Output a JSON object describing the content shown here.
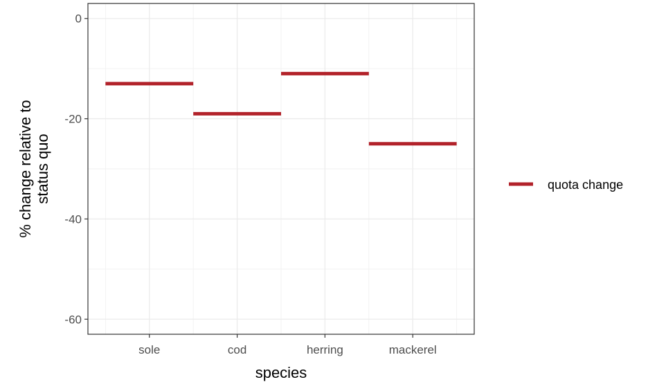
{
  "chart_data": {
    "type": "line",
    "title": "",
    "xlabel": "species",
    "ylabel_lines": [
      "% change relative to",
      "status quo"
    ],
    "categories": [
      "sole",
      "cod",
      "herring",
      "mackerel"
    ],
    "series": [
      {
        "name": "quota change",
        "values": [
          -13,
          -19,
          -11,
          -25
        ],
        "color": "#b2222a"
      }
    ],
    "ylim": [
      -63,
      3
    ],
    "yticks": [
      0,
      -20,
      -40,
      -60
    ],
    "ytick_labels": [
      "0",
      "-20",
      "-40",
      "-60"
    ],
    "grid": true,
    "legend": {
      "position": "right",
      "entries": [
        "quota change"
      ]
    }
  }
}
